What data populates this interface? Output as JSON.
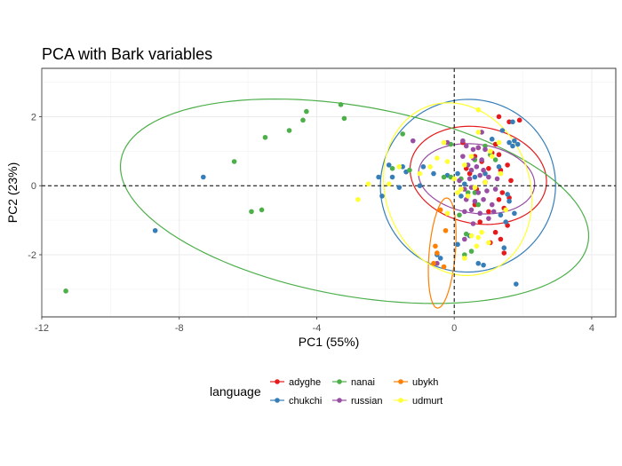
{
  "chart_data": {
    "type": "scatter",
    "title": "PCA with Bark variables",
    "xlabel": "PC1 (55%)",
    "ylabel": "PC2 (23%)",
    "xlim": [
      -12,
      4.7
    ],
    "ylim": [
      -3.8,
      3.4
    ],
    "xticks": [
      -12,
      -8,
      -4,
      0,
      4
    ],
    "yticks": [
      -2,
      0,
      2
    ],
    "reference_lines": {
      "x": 0,
      "y": 0,
      "style": "dashed"
    },
    "grid": true,
    "legend": {
      "title": "language",
      "position": "bottom"
    },
    "series": [
      {
        "name": "adyghe",
        "color": "#E41A1C",
        "ellipse": {
          "cx": 0.7,
          "cy": 0.3,
          "rx": 1.4,
          "ry": 2.0,
          "angle_deg": 80
        },
        "points": [
          [
            1.3,
            2.0
          ],
          [
            1.6,
            1.85
          ],
          [
            1.9,
            1.9
          ],
          [
            0.25,
            1.25
          ],
          [
            0.7,
            1.1
          ],
          [
            1.2,
            1.2
          ],
          [
            1.1,
            0.95
          ],
          [
            0.6,
            0.85
          ],
          [
            0.35,
            0.5
          ],
          [
            0.45,
            0.35
          ],
          [
            0.8,
            0.7
          ],
          [
            1.0,
            0.5
          ],
          [
            1.35,
            0.45
          ],
          [
            1.3,
            0.9
          ],
          [
            1.55,
            0.6
          ],
          [
            1.65,
            0.15
          ],
          [
            0.9,
            0.1
          ],
          [
            0.65,
            -0.1
          ],
          [
            1.4,
            -0.2
          ],
          [
            1.3,
            -0.4
          ],
          [
            1.6,
            -0.35
          ],
          [
            1.45,
            -0.65
          ],
          [
            1.0,
            -0.75
          ],
          [
            0.6,
            -0.55
          ],
          [
            0.75,
            -1.05
          ],
          [
            1.2,
            -1.35
          ],
          [
            1.55,
            -1.15
          ],
          [
            1.35,
            -1.55
          ],
          [
            1.05,
            -1.65
          ],
          [
            1.45,
            -1.95
          ]
        ]
      },
      {
        "name": "chukchi",
        "color": "#377EB8",
        "ellipse": {
          "cx": 0.4,
          "cy": 0.0,
          "rx": 2.55,
          "ry": 2.5,
          "angle_deg": 10
        },
        "points": [
          [
            -8.7,
            -1.3
          ],
          [
            -7.3,
            0.25
          ],
          [
            -1.9,
            0.6
          ],
          [
            -1.5,
            0.55
          ],
          [
            -2.2,
            0.25
          ],
          [
            -1.8,
            0.25
          ],
          [
            -1.4,
            0.4
          ],
          [
            -0.9,
            0.55
          ],
          [
            -2.1,
            -0.3
          ],
          [
            -1.6,
            -0.05
          ],
          [
            -1.0,
            0.0
          ],
          [
            -0.6,
            0.35
          ],
          [
            -0.2,
            0.3
          ],
          [
            0.1,
            0.35
          ],
          [
            0.3,
            0.05
          ],
          [
            0.6,
            0.25
          ],
          [
            0.9,
            0.35
          ],
          [
            1.1,
            1.35
          ],
          [
            1.3,
            0.55
          ],
          [
            1.7,
            1.15
          ],
          [
            1.75,
            1.3
          ],
          [
            1.85,
            1.2
          ],
          [
            1.6,
            1.25
          ],
          [
            1.4,
            1.6
          ],
          [
            1.7,
            1.85
          ],
          [
            1.55,
            -0.25
          ],
          [
            1.6,
            -0.45
          ],
          [
            1.35,
            -0.85
          ],
          [
            1.5,
            -1.05
          ],
          [
            1.75,
            -0.8
          ],
          [
            1.45,
            -1.8
          ],
          [
            0.85,
            -2.3
          ],
          [
            0.7,
            -2.25
          ],
          [
            0.1,
            -1.7
          ],
          [
            -0.4,
            -2.1
          ],
          [
            -0.5,
            -2.0
          ],
          [
            1.8,
            -2.85
          ],
          [
            0.2,
            -0.3
          ],
          [
            0.45,
            -1.45
          ]
        ]
      },
      {
        "name": "nanai",
        "color": "#4DAF4A",
        "ellipse": {
          "cx": -2.9,
          "cy": -0.45,
          "rx": 6.9,
          "ry": 2.75,
          "angle_deg": -10
        },
        "points": [
          [
            -11.3,
            -3.05
          ],
          [
            -6.4,
            0.7
          ],
          [
            -5.9,
            -0.75
          ],
          [
            -5.6,
            -0.7
          ],
          [
            -5.5,
            1.4
          ],
          [
            -4.8,
            1.6
          ],
          [
            -4.3,
            2.15
          ],
          [
            -4.4,
            1.9
          ],
          [
            -3.3,
            2.35
          ],
          [
            -3.2,
            1.95
          ],
          [
            -1.5,
            1.5
          ],
          [
            -1.8,
            0.5
          ],
          [
            -1.3,
            0.45
          ],
          [
            -0.3,
            0.25
          ],
          [
            -0.1,
            0.25
          ],
          [
            0.2,
            0.2
          ],
          [
            0.4,
            -0.2
          ],
          [
            0.6,
            0.75
          ],
          [
            0.9,
            1.15
          ],
          [
            1.05,
            0.9
          ],
          [
            1.2,
            0.75
          ],
          [
            0.7,
            -0.55
          ],
          [
            0.35,
            -1.4
          ],
          [
            0.15,
            -0.85
          ],
          [
            0.6,
            -0.2
          ],
          [
            0.3,
            -2.0
          ],
          [
            0.5,
            -1.9
          ],
          [
            -0.1,
            1.2
          ]
        ]
      },
      {
        "name": "russian",
        "color": "#984EA3",
        "ellipse": {
          "cx": 0.65,
          "cy": 0.2,
          "rx": 1.0,
          "ry": 1.7,
          "angle_deg": 82
        },
        "points": [
          [
            -1.2,
            1.3
          ],
          [
            -0.2,
            1.25
          ],
          [
            0.25,
            1.3
          ],
          [
            0.35,
            1.15
          ],
          [
            0.55,
            1.05
          ],
          [
            0.7,
            1.1
          ],
          [
            0.9,
            1.05
          ],
          [
            0.25,
            0.85
          ],
          [
            0.55,
            0.8
          ],
          [
            0.8,
            0.75
          ],
          [
            0.4,
            0.6
          ],
          [
            0.5,
            0.45
          ],
          [
            0.65,
            0.55
          ],
          [
            0.85,
            0.45
          ],
          [
            0.15,
            0.15
          ],
          [
            0.45,
            0.2
          ],
          [
            0.75,
            0.3
          ],
          [
            1.0,
            0.25
          ],
          [
            1.25,
            0.2
          ],
          [
            0.3,
            -0.1
          ],
          [
            0.5,
            -0.05
          ],
          [
            0.7,
            -0.2
          ],
          [
            0.95,
            -0.15
          ],
          [
            1.2,
            -0.1
          ],
          [
            0.35,
            -0.4
          ],
          [
            0.6,
            -0.45
          ],
          [
            0.85,
            -0.4
          ],
          [
            1.1,
            -0.55
          ],
          [
            0.5,
            -0.7
          ],
          [
            0.75,
            -0.8
          ],
          [
            1.0,
            -0.95
          ],
          [
            0.3,
            -0.75
          ],
          [
            0.55,
            -1.1
          ],
          [
            -0.5,
            -2.25
          ],
          [
            0.3,
            -1.55
          ],
          [
            1.15,
            -0.75
          ],
          [
            0.8,
            1.55
          ]
        ]
      },
      {
        "name": "ubykh",
        "color": "#FF7F00",
        "ellipse": {
          "cx": -0.35,
          "cy": -1.95,
          "rx": 1.6,
          "ry": 0.38,
          "angle_deg": 85
        },
        "points": [
          [
            -0.55,
            -1.75
          ],
          [
            -0.5,
            -1.95
          ],
          [
            -0.6,
            -2.25
          ],
          [
            -0.4,
            -0.7
          ],
          [
            -0.25,
            -1.3
          ],
          [
            -0.3,
            -2.35
          ]
        ]
      },
      {
        "name": "udmurt",
        "color": "#FFFF33",
        "ellipse": {
          "cx": 0.1,
          "cy": -0.1,
          "rx": 2.55,
          "ry": 2.1,
          "angle_deg": -70
        },
        "points": [
          [
            -2.8,
            -0.4
          ],
          [
            -2.5,
            0.05
          ],
          [
            -1.9,
            0.05
          ],
          [
            -1.6,
            0.55
          ],
          [
            -1.0,
            0.35
          ],
          [
            -0.5,
            0.8
          ],
          [
            -0.7,
            0.55
          ],
          [
            -0.3,
            1.25
          ],
          [
            -0.2,
            0.7
          ],
          [
            0.0,
            0.2
          ],
          [
            0.1,
            -0.2
          ],
          [
            0.2,
            -0.1
          ],
          [
            0.3,
            0.6
          ],
          [
            0.4,
            -0.3
          ],
          [
            0.6,
            -0.05
          ],
          [
            0.5,
            -1.45
          ],
          [
            0.7,
            -1.5
          ],
          [
            0.8,
            -1.35
          ],
          [
            0.65,
            -1.75
          ],
          [
            1.0,
            -1.65
          ],
          [
            0.3,
            -2.1
          ],
          [
            0.7,
            2.2
          ],
          [
            0.7,
            1.55
          ],
          [
            1.05,
            1.0
          ],
          [
            1.1,
            0.85
          ],
          [
            1.3,
            1.25
          ],
          [
            0.5,
            0.85
          ],
          [
            1.35,
            0.35
          ],
          [
            1.5,
            -0.7
          ],
          [
            -0.2,
            -0.8
          ],
          [
            0.9,
            0.1
          ]
        ]
      }
    ]
  }
}
